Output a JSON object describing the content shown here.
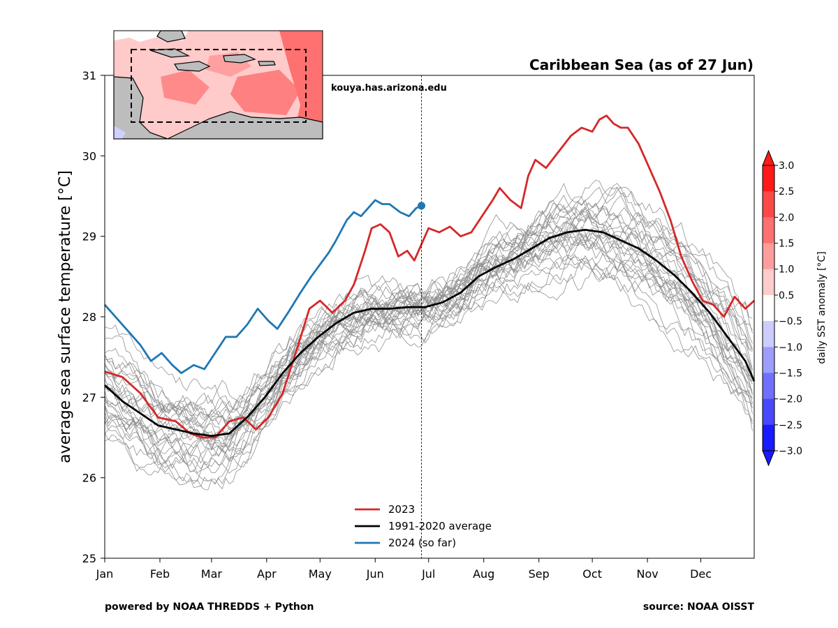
{
  "chart_data": {
    "type": "line",
    "title": "Caribbean Sea (as of 27 Jun)",
    "watermark": "kouya.has.arizona.edu",
    "ylabel": "average sea surface temperature [°C]",
    "xlabel": "",
    "ylim": [
      25,
      31
    ],
    "yticks": [
      25,
      26,
      27,
      28,
      29,
      30,
      31
    ],
    "xlim": [
      0,
      365
    ],
    "month_ticks": [
      {
        "label": "Jan",
        "day": 0
      },
      {
        "label": "Feb",
        "day": 31
      },
      {
        "label": "Mar",
        "day": 60
      },
      {
        "label": "Apr",
        "day": 91
      },
      {
        "label": "May",
        "day": 121
      },
      {
        "label": "Jun",
        "day": 152
      },
      {
        "label": "Jul",
        "day": 182
      },
      {
        "label": "Aug",
        "day": 213
      },
      {
        "label": "Sep",
        "day": 244
      },
      {
        "label": "Oct",
        "day": 274
      },
      {
        "label": "Nov",
        "day": 305
      },
      {
        "label": "Dec",
        "day": 335
      }
    ],
    "current_day": 178,
    "grid": false,
    "legend_position": "bottom-center",
    "series": [
      {
        "name": "2023",
        "color": "#d62728",
        "points": [
          [
            0,
            27.32
          ],
          [
            10,
            27.25
          ],
          [
            20,
            27.05
          ],
          [
            30,
            26.75
          ],
          [
            40,
            26.7
          ],
          [
            48,
            26.55
          ],
          [
            55,
            26.5
          ],
          [
            62,
            26.5
          ],
          [
            70,
            26.7
          ],
          [
            78,
            26.75
          ],
          [
            85,
            26.6
          ],
          [
            92,
            26.75
          ],
          [
            100,
            27.05
          ],
          [
            108,
            27.6
          ],
          [
            115,
            28.1
          ],
          [
            121,
            28.2
          ],
          [
            128,
            28.05
          ],
          [
            135,
            28.2
          ],
          [
            140,
            28.4
          ],
          [
            146,
            28.8
          ],
          [
            150,
            29.1
          ],
          [
            155,
            29.15
          ],
          [
            160,
            29.05
          ],
          [
            165,
            28.75
          ],
          [
            170,
            28.82
          ],
          [
            174,
            28.7
          ],
          [
            178,
            28.9
          ],
          [
            182,
            29.1
          ],
          [
            188,
            29.05
          ],
          [
            194,
            29.12
          ],
          [
            200,
            29.0
          ],
          [
            206,
            29.05
          ],
          [
            212,
            29.25
          ],
          [
            218,
            29.45
          ],
          [
            222,
            29.6
          ],
          [
            228,
            29.45
          ],
          [
            234,
            29.35
          ],
          [
            238,
            29.75
          ],
          [
            242,
            29.95
          ],
          [
            248,
            29.85
          ],
          [
            255,
            30.05
          ],
          [
            262,
            30.25
          ],
          [
            268,
            30.35
          ],
          [
            274,
            30.3
          ],
          [
            278,
            30.45
          ],
          [
            282,
            30.5
          ],
          [
            286,
            30.4
          ],
          [
            290,
            30.35
          ],
          [
            294,
            30.35
          ],
          [
            300,
            30.15
          ],
          [
            306,
            29.85
          ],
          [
            312,
            29.55
          ],
          [
            318,
            29.2
          ],
          [
            324,
            28.75
          ],
          [
            330,
            28.45
          ],
          [
            336,
            28.2
          ],
          [
            342,
            28.15
          ],
          [
            348,
            28.0
          ],
          [
            354,
            28.25
          ],
          [
            360,
            28.1
          ],
          [
            365,
            28.2
          ]
        ]
      },
      {
        "name": "1991-2020 average",
        "color": "#000000",
        "points": [
          [
            0,
            27.15
          ],
          [
            10,
            26.95
          ],
          [
            20,
            26.8
          ],
          [
            30,
            26.65
          ],
          [
            40,
            26.6
          ],
          [
            50,
            26.55
          ],
          [
            60,
            26.52
          ],
          [
            70,
            26.55
          ],
          [
            80,
            26.75
          ],
          [
            90,
            27.0
          ],
          [
            100,
            27.3
          ],
          [
            110,
            27.55
          ],
          [
            120,
            27.75
          ],
          [
            130,
            27.92
          ],
          [
            140,
            28.05
          ],
          [
            150,
            28.1
          ],
          [
            160,
            28.1
          ],
          [
            170,
            28.12
          ],
          [
            180,
            28.12
          ],
          [
            190,
            28.18
          ],
          [
            200,
            28.3
          ],
          [
            210,
            28.5
          ],
          [
            220,
            28.62
          ],
          [
            230,
            28.72
          ],
          [
            240,
            28.85
          ],
          [
            250,
            28.98
          ],
          [
            260,
            29.05
          ],
          [
            270,
            29.08
          ],
          [
            280,
            29.05
          ],
          [
            290,
            28.95
          ],
          [
            300,
            28.85
          ],
          [
            310,
            28.7
          ],
          [
            320,
            28.52
          ],
          [
            330,
            28.3
          ],
          [
            340,
            28.05
          ],
          [
            350,
            27.75
          ],
          [
            360,
            27.45
          ],
          [
            365,
            27.2
          ]
        ]
      },
      {
        "name": "2024 (so far)",
        "color": "#1f77b4",
        "points": [
          [
            0,
            28.15
          ],
          [
            8,
            27.95
          ],
          [
            14,
            27.8
          ],
          [
            20,
            27.65
          ],
          [
            26,
            27.45
          ],
          [
            32,
            27.55
          ],
          [
            38,
            27.4
          ],
          [
            43,
            27.3
          ],
          [
            50,
            27.4
          ],
          [
            56,
            27.35
          ],
          [
            62,
            27.55
          ],
          [
            68,
            27.75
          ],
          [
            74,
            27.75
          ],
          [
            80,
            27.9
          ],
          [
            86,
            28.1
          ],
          [
            92,
            27.95
          ],
          [
            97,
            27.85
          ],
          [
            103,
            28.05
          ],
          [
            110,
            28.3
          ],
          [
            116,
            28.5
          ],
          [
            121,
            28.65
          ],
          [
            126,
            28.8
          ],
          [
            130,
            28.95
          ],
          [
            136,
            29.2
          ],
          [
            140,
            29.3
          ],
          [
            144,
            29.25
          ],
          [
            148,
            29.35
          ],
          [
            152,
            29.45
          ],
          [
            156,
            29.4
          ],
          [
            160,
            29.4
          ],
          [
            166,
            29.3
          ],
          [
            171,
            29.25
          ],
          [
            175,
            29.35
          ],
          [
            178,
            29.38
          ]
        ]
      }
    ],
    "historical_years": {
      "color": "#909090",
      "count": 30,
      "range_note": ""
    },
    "colorbar": {
      "label": "daily SST anomaly [°C]",
      "ticks": [
        "3.0",
        "2.5",
        "2.0",
        "1.5",
        "1.0",
        "0.5",
        "−0.5",
        "−1.0",
        "−1.5",
        "−2.0",
        "−2.5",
        "−3.0"
      ],
      "colors": [
        "#ff1a1a",
        "#ff4848",
        "#ff7070",
        "#ff9d9d",
        "#ffcccc",
        "#ffffff",
        "#ccccff",
        "#9d9dff",
        "#7070ff",
        "#4848ff",
        "#1a1aff"
      ],
      "top_color": "#ff1a1a",
      "bottom_color": "#1a1aff"
    }
  },
  "footer": {
    "left": "powered by NOAA THREDDS + Python",
    "right": "source: NOAA OISST"
  }
}
